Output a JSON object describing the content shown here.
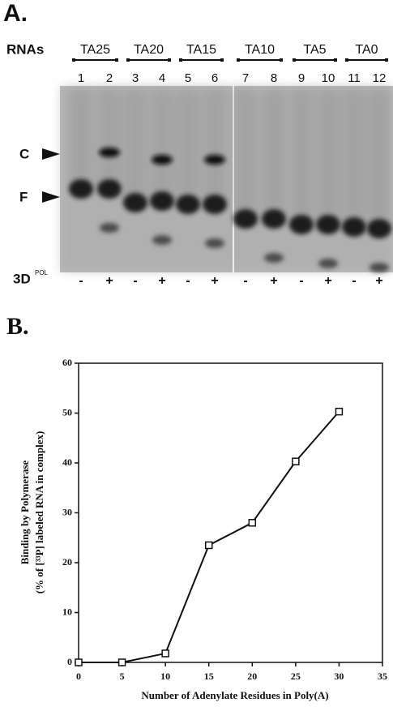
{
  "panel_a": {
    "panel_label": "A.",
    "rows_label": "RNAs",
    "groups": [
      "TA25",
      "TA20",
      "TA15",
      "TA10",
      "TA5",
      "TA0"
    ],
    "lanes": [
      "1",
      "2",
      "3",
      "4",
      "5",
      "6",
      "7",
      "8",
      "9",
      "10",
      "11",
      "12"
    ],
    "markers": [
      "C",
      "F"
    ],
    "protein": {
      "label": "3D",
      "superscript": "POL"
    },
    "signs": [
      "-",
      "+",
      "-",
      "+",
      "-",
      "+",
      "-",
      "+",
      "-",
      "+",
      "-",
      "+"
    ]
  },
  "chart_data": {
    "type": "line",
    "panel_label": "B.",
    "x_label": "Number of Adenylate Residues in Poly(A)",
    "y_label": [
      "Binding by Polymerase",
      "(% of [³³P] labeled RNA in complex)"
    ],
    "x": [
      0,
      5,
      10,
      15,
      20,
      25,
      30
    ],
    "series": [
      {
        "color": "#111111",
        "values": [
          0,
          0,
          1.8,
          23.5,
          28,
          40.3,
          50.3
        ]
      }
    ],
    "xlim": [
      0,
      35
    ],
    "xticks": [
      0,
      5,
      10,
      15,
      20,
      25,
      30,
      35
    ],
    "ylim": [
      0,
      60
    ],
    "yticks": [
      0,
      10,
      20,
      30,
      40,
      50,
      60
    ],
    "marker": "square",
    "grid": false
  }
}
